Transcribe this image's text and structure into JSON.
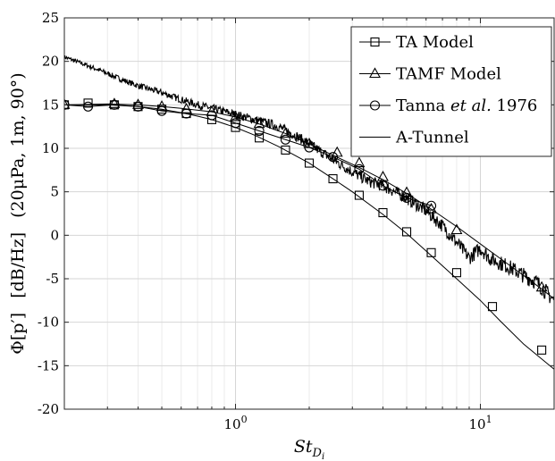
{
  "chart_data": {
    "type": "line",
    "xlabel_main": "St",
    "xlabel_sub": "D",
    "xlabel_subsub": "i",
    "ylabel_left": "Φ[p′]",
    "ylabel_mid": "[dB/Hz]",
    "ylabel_right": "(20μPa, 1m, 90°)",
    "x_scale": "log",
    "xlim": [
      0.2,
      20
    ],
    "ylim": [
      -20,
      25
    ],
    "grid": true,
    "legend_position": "top-right",
    "x_tick_labels": [
      {
        "value": 1,
        "label": "10",
        "exp": "0"
      },
      {
        "value": 10,
        "label": "10",
        "exp": "1"
      }
    ],
    "y_ticks": [
      -20,
      -15,
      -10,
      -5,
      0,
      5,
      10,
      15,
      20,
      25
    ],
    "series": [
      {
        "name": "TA Model",
        "marker": "square",
        "x": [
          0.2,
          0.3,
          0.4,
          0.5,
          0.6,
          0.7,
          0.8,
          1.0,
          1.2,
          1.5,
          2.0,
          2.5,
          3.0,
          4.0,
          5.0,
          6.0,
          8.0,
          10.0,
          12.0,
          15.0,
          20.0
        ],
        "y": [
          15.0,
          15.0,
          14.8,
          14.5,
          14.1,
          13.7,
          13.3,
          12.4,
          11.5,
          10.2,
          8.3,
          6.5,
          5.0,
          2.4,
          0.2,
          -1.8,
          -5.0,
          -7.5,
          -9.8,
          -12.5,
          -15.4
        ],
        "marker_x": [
          0.2,
          0.25,
          0.32,
          0.4,
          0.5,
          0.63,
          0.8,
          1.0,
          1.25,
          1.6,
          2.0,
          2.5,
          3.2,
          4.0,
          5.0,
          6.3,
          8.0,
          11.2,
          17.8
        ],
        "marker_y": [
          15.0,
          15.2,
          15.0,
          14.8,
          14.5,
          14.0,
          13.3,
          12.4,
          11.2,
          9.8,
          8.3,
          6.5,
          4.6,
          2.6,
          0.4,
          -2.0,
          -4.3,
          -8.2,
          -13.2
        ]
      },
      {
        "name": "TAMF Model",
        "marker": "triangle",
        "x": [
          0.2,
          0.3,
          0.4,
          0.5,
          0.6,
          0.8,
          1.0,
          1.25,
          1.6,
          2.0,
          2.5,
          3.2,
          4.0,
          5.0,
          6.3,
          8.0,
          10.0,
          12.5,
          16.0,
          20.0
        ],
        "y": [
          15.0,
          15.1,
          15.0,
          14.8,
          14.6,
          14.2,
          13.6,
          12.8,
          11.7,
          10.5,
          9.2,
          7.8,
          6.4,
          4.8,
          3.0,
          1.0,
          -1.0,
          -3.0,
          -5.2,
          -7.3
        ],
        "marker_x": [
          0.2,
          0.32,
          0.4,
          0.5,
          0.63,
          0.8,
          1.0,
          1.25,
          1.6,
          2.0,
          2.6,
          3.2,
          4.0,
          5.0,
          6.3,
          8.0,
          17.8
        ],
        "marker_y": [
          15.0,
          15.1,
          15.0,
          14.8,
          14.5,
          14.2,
          13.6,
          12.8,
          11.7,
          10.5,
          9.5,
          8.3,
          6.7,
          4.9,
          3.0,
          0.6,
          -6.0
        ]
      },
      {
        "name": "Tanna et al. 1976",
        "marker": "circle",
        "x": [
          0.2,
          0.25,
          0.32,
          0.4,
          0.5,
          0.63,
          0.8,
          1.0,
          1.25,
          1.6,
          2.0,
          2.5,
          3.2,
          4.0,
          5.0,
          6.3
        ],
        "y": [
          15.0,
          14.8,
          15.0,
          14.8,
          14.3,
          14.0,
          13.8,
          12.9,
          12.0,
          11.0,
          10.1,
          9.0,
          7.6,
          5.7,
          4.3,
          3.4
        ],
        "marker_x": [
          0.2,
          0.25,
          0.32,
          0.4,
          0.5,
          0.63,
          0.8,
          1.0,
          1.25,
          1.6,
          2.0,
          2.5,
          3.2,
          4.0,
          5.0,
          6.3
        ],
        "marker_y": [
          15.0,
          14.8,
          15.0,
          14.8,
          14.3,
          14.0,
          13.8,
          12.9,
          12.0,
          11.0,
          10.1,
          9.0,
          7.6,
          5.7,
          4.3,
          3.4
        ]
      },
      {
        "name": "A-Tunnel",
        "marker": "none",
        "x": [
          0.2,
          0.25,
          0.3,
          0.35,
          0.4,
          0.5,
          0.6,
          0.7,
          0.8,
          1.0,
          1.2,
          1.5,
          1.8,
          2.0,
          2.5,
          3.0,
          3.5,
          4.0,
          5.0,
          6.0,
          7.0,
          8.0,
          9.0,
          10.0,
          11.0,
          13.0,
          15.0,
          17.0,
          20.0
        ],
        "y": [
          20.5,
          19.5,
          18.6,
          17.8,
          17.2,
          16.4,
          15.6,
          15.0,
          14.6,
          13.9,
          13.3,
          12.5,
          11.3,
          10.5,
          8.7,
          7.3,
          6.2,
          5.7,
          4.3,
          2.8,
          1.1,
          -0.8,
          -2.6,
          -1.5,
          -2.7,
          -3.6,
          -4.6,
          -5.4,
          -7.5
        ],
        "noise": 0.6
      }
    ]
  }
}
